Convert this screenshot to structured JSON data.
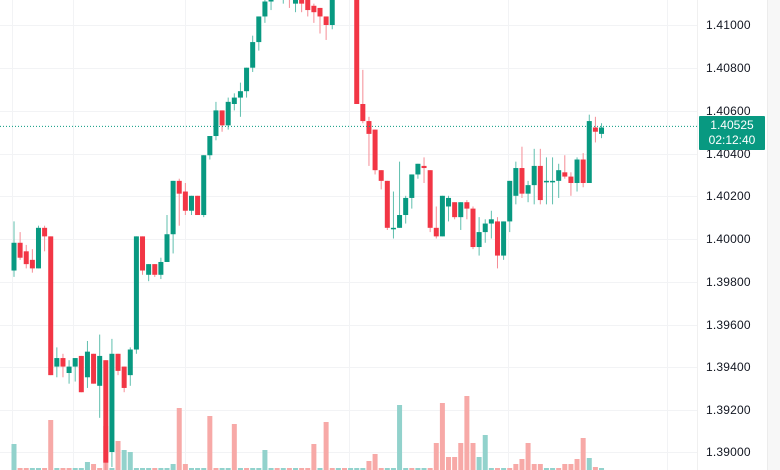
{
  "chart_data": {
    "type": "candlestick",
    "title": "",
    "xlabel": "",
    "ylabel": "",
    "ylim": [
      1.3896,
      1.4115
    ],
    "grid": true,
    "colors": {
      "up": "#089981",
      "down": "#f23645",
      "up_volume": "#92d2cc",
      "down_volume": "#f7a9a7",
      "grid": "#f0f3fa",
      "last_price_line": "#089981"
    },
    "price_axis_ticks": [
      "1.41000",
      "1.40800",
      "1.40600",
      "1.40400",
      "1.40200",
      "1.40000",
      "1.39800",
      "1.39600",
      "1.39400",
      "1.39200",
      "1.39000"
    ],
    "last_price": "1.40525",
    "countdown": "02:12:40",
    "candles": [
      {
        "o": 1.3985,
        "h": 1.4008,
        "l": 1.3982,
        "c": 1.3998
      },
      {
        "o": 1.3998,
        "h": 1.4003,
        "l": 1.399,
        "c": 1.3991
      },
      {
        "o": 1.3994,
        "h": 1.3997,
        "l": 1.3986,
        "c": 1.3988
      },
      {
        "o": 1.399,
        "h": 1.3995,
        "l": 1.3984,
        "c": 1.3986
      },
      {
        "o": 1.3986,
        "h": 1.4006,
        "l": 1.3986,
        "c": 1.4005
      },
      {
        "o": 1.4005,
        "h": 1.4006,
        "l": 1.3994,
        "c": 1.4001
      },
      {
        "o": 1.4001,
        "h": 1.4001,
        "l": 1.3937,
        "c": 1.3936
      },
      {
        "o": 1.394,
        "h": 1.3949,
        "l": 1.3935,
        "c": 1.3944
      },
      {
        "o": 1.3944,
        "h": 1.3946,
        "l": 1.3935,
        "c": 1.394
      },
      {
        "o": 1.3937,
        "h": 1.3943,
        "l": 1.3932,
        "c": 1.394
      },
      {
        "o": 1.394,
        "h": 1.3944,
        "l": 1.3933,
        "c": 1.3944
      },
      {
        "o": 1.3945,
        "h": 1.3945,
        "l": 1.3928,
        "c": 1.3928
      },
      {
        "o": 1.3935,
        "h": 1.3952,
        "l": 1.393,
        "c": 1.3947
      },
      {
        "o": 1.3946,
        "h": 1.3943,
        "l": 1.3933,
        "c": 1.3932
      },
      {
        "o": 1.3931,
        "h": 1.3955,
        "l": 1.3916,
        "c": 1.3945
      },
      {
        "o": 1.3943,
        "h": 1.3935,
        "l": 1.3891,
        "c": 1.3895
      },
      {
        "o": 1.39,
        "h": 1.3953,
        "l": 1.3893,
        "c": 1.3946
      },
      {
        "o": 1.3946,
        "h": 1.3946,
        "l": 1.3936,
        "c": 1.3938
      },
      {
        "o": 1.394,
        "h": 1.394,
        "l": 1.3928,
        "c": 1.393
      },
      {
        "o": 1.3936,
        "h": 1.3949,
        "l": 1.3931,
        "c": 1.3948
      },
      {
        "o": 1.3948,
        "h": 1.4001,
        "l": 1.3946,
        "c": 1.4001
      },
      {
        "o": 1.4001,
        "h": 1.4001,
        "l": 1.3983,
        "c": 1.3985
      },
      {
        "o": 1.3983,
        "h": 1.3988,
        "l": 1.398,
        "c": 1.3988
      },
      {
        "o": 1.3988,
        "h": 1.3985,
        "l": 1.3982,
        "c": 1.3983
      },
      {
        "o": 1.3983,
        "h": 1.3991,
        "l": 1.3981,
        "c": 1.3989
      },
      {
        "o": 1.3989,
        "h": 1.4011,
        "l": 1.3989,
        "c": 1.4002
      },
      {
        "o": 1.4002,
        "h": 1.4027,
        "l": 1.3993,
        "c": 1.4027
      },
      {
        "o": 1.4027,
        "h": 1.4028,
        "l": 1.4006,
        "c": 1.4021
      },
      {
        "o": 1.4022,
        "h": 1.4026,
        "l": 1.4011,
        "c": 1.4013
      },
      {
        "o": 1.4013,
        "h": 1.402,
        "l": 1.4011,
        "c": 1.402
      },
      {
        "o": 1.402,
        "h": 1.402,
        "l": 1.4011,
        "c": 1.4011
      },
      {
        "o": 1.4011,
        "h": 1.4039,
        "l": 1.401,
        "c": 1.4039
      },
      {
        "o": 1.4039,
        "h": 1.4047,
        "l": 1.4037,
        "c": 1.4048
      },
      {
        "o": 1.4048,
        "h": 1.4064,
        "l": 1.4046,
        "c": 1.406
      },
      {
        "o": 1.406,
        "h": 1.406,
        "l": 1.405,
        "c": 1.4053
      },
      {
        "o": 1.4053,
        "h": 1.4066,
        "l": 1.4051,
        "c": 1.4064
      },
      {
        "o": 1.4063,
        "h": 1.4068,
        "l": 1.406,
        "c": 1.4066
      },
      {
        "o": 1.4066,
        "h": 1.4073,
        "l": 1.4057,
        "c": 1.4069
      },
      {
        "o": 1.4069,
        "h": 1.408,
        "l": 1.4066,
        "c": 1.408
      },
      {
        "o": 1.408,
        "h": 1.4095,
        "l": 1.4078,
        "c": 1.4092
      },
      {
        "o": 1.4092,
        "h": 1.4104,
        "l": 1.4088,
        "c": 1.4104
      },
      {
        "o": 1.4104,
        "h": 1.4114,
        "l": 1.4101,
        "c": 1.4111
      },
      {
        "o": 1.4111,
        "h": 1.4124,
        "l": 1.4107,
        "c": 1.4121
      },
      {
        "o": 1.4121,
        "h": 1.4121,
        "l": 1.4112,
        "c": 1.4114
      },
      {
        "o": 1.4114,
        "h": 1.412,
        "l": 1.411,
        "c": 1.4117
      },
      {
        "o": 1.4117,
        "h": 1.412,
        "l": 1.4108,
        "c": 1.4112
      },
      {
        "o": 1.411,
        "h": 1.4117,
        "l": 1.4106,
        "c": 1.4113
      },
      {
        "o": 1.4116,
        "h": 1.4118,
        "l": 1.4106,
        "c": 1.411
      },
      {
        "o": 1.4113,
        "h": 1.4114,
        "l": 1.4104,
        "c": 1.4107
      },
      {
        "o": 1.4109,
        "h": 1.411,
        "l": 1.4101,
        "c": 1.4106
      },
      {
        "o": 1.4108,
        "h": 1.4106,
        "l": 1.4096,
        "c": 1.4104
      },
      {
        "o": 1.4104,
        "h": 1.4102,
        "l": 1.4093,
        "c": 1.41
      },
      {
        "o": 1.41,
        "h": 1.413,
        "l": 1.4098,
        "c": 1.4126
      },
      {
        "o": 1.4126,
        "h": 1.4136,
        "l": 1.4112,
        "c": 1.413
      },
      {
        "o": 1.413,
        "h": 1.4132,
        "l": 1.4126,
        "c": 1.4128
      },
      {
        "o": 1.4128,
        "h": 1.4128,
        "l": 1.4126,
        "c": 1.4127
      },
      {
        "o": 1.4126,
        "h": 1.4126,
        "l": 1.4063,
        "c": 1.4063
      },
      {
        "o": 1.4063,
        "h": 1.4079,
        "l": 1.4054,
        "c": 1.4055
      },
      {
        "o": 1.4055,
        "h": 1.4057,
        "l": 1.4034,
        "c": 1.4049
      },
      {
        "o": 1.4051,
        "h": 1.405,
        "l": 1.403,
        "c": 1.4032
      },
      {
        "o": 1.4032,
        "h": 1.4031,
        "l": 1.4023,
        "c": 1.4027
      },
      {
        "o": 1.4027,
        "h": 1.4027,
        "l": 1.4004,
        "c": 1.4005
      },
      {
        "o": 1.4005,
        "h": 1.4022,
        "l": 1.4,
        "c": 1.4005
      },
      {
        "o": 1.4005,
        "h": 1.4036,
        "l": 1.4006,
        "c": 1.4011
      },
      {
        "o": 1.4011,
        "h": 1.402,
        "l": 1.4007,
        "c": 1.4019
      },
      {
        "o": 1.4019,
        "h": 1.403,
        "l": 1.4014,
        "c": 1.403
      },
      {
        "o": 1.403,
        "h": 1.4035,
        "l": 1.4028,
        "c": 1.4035
      },
      {
        "o": 1.4034,
        "h": 1.4038,
        "l": 1.4026,
        "c": 1.4033
      },
      {
        "o": 1.4032,
        "h": 1.4032,
        "l": 1.4003,
        "c": 1.4005
      },
      {
        "o": 1.4005,
        "h": 1.4015,
        "l": 1.4,
        "c": 1.4001
      },
      {
        "o": 1.4001,
        "h": 1.402,
        "l": 1.4001,
        "c": 1.402
      },
      {
        "o": 1.4015,
        "h": 1.402,
        "l": 1.4008,
        "c": 1.4019
      },
      {
        "o": 1.4017,
        "h": 1.4017,
        "l": 1.4009,
        "c": 1.401
      },
      {
        "o": 1.401,
        "h": 1.4017,
        "l": 1.4004,
        "c": 1.4017
      },
      {
        "o": 1.4017,
        "h": 1.4018,
        "l": 1.4009,
        "c": 1.4014
      },
      {
        "o": 1.4014,
        "h": 1.4015,
        "l": 1.3995,
        "c": 1.3996
      },
      {
        "o": 1.3996,
        "h": 1.401,
        "l": 1.3992,
        "c": 1.4003
      },
      {
        "o": 1.4003,
        "h": 1.4009,
        "l": 1.3998,
        "c": 1.4007
      },
      {
        "o": 1.4007,
        "h": 1.4013,
        "l": 1.4,
        "c": 1.4009
      },
      {
        "o": 1.4008,
        "h": 1.401,
        "l": 1.3986,
        "c": 1.3992
      },
      {
        "o": 1.3992,
        "h": 1.4002,
        "l": 1.399,
        "c": 1.4008
      },
      {
        "o": 1.4008,
        "h": 1.4027,
        "l": 1.4003,
        "c": 1.4027
      },
      {
        "o": 1.402,
        "h": 1.4036,
        "l": 1.4016,
        "c": 1.4033
      },
      {
        "o": 1.4033,
        "h": 1.4043,
        "l": 1.4019,
        "c": 1.4021
      },
      {
        "o": 1.4021,
        "h": 1.4027,
        "l": 1.4017,
        "c": 1.4025
      },
      {
        "o": 1.4025,
        "h": 1.4042,
        "l": 1.4016,
        "c": 1.4034
      },
      {
        "o": 1.4034,
        "h": 1.4042,
        "l": 1.4016,
        "c": 1.4018
      },
      {
        "o": 1.4027,
        "h": 1.4038,
        "l": 1.4016,
        "c": 1.4027
      },
      {
        "o": 1.4027,
        "h": 1.4038,
        "l": 1.4016,
        "c": 1.4027
      },
      {
        "o": 1.4027,
        "h": 1.4035,
        "l": 1.4019,
        "c": 1.4032
      },
      {
        "o": 1.4031,
        "h": 1.4039,
        "l": 1.4028,
        "c": 1.4029
      },
      {
        "o": 1.4029,
        "h": 1.4031,
        "l": 1.402,
        "c": 1.4026
      },
      {
        "o": 1.4026,
        "h": 1.4038,
        "l": 1.4022,
        "c": 1.4037
      },
      {
        "o": 1.4037,
        "h": 1.404,
        "l": 1.4024,
        "c": 1.4026
      },
      {
        "o": 1.4026,
        "h": 1.4058,
        "l": 1.4026,
        "c": 1.4055
      },
      {
        "o": 1.4052,
        "h": 1.4057,
        "l": 1.4045,
        "c": 1.405
      },
      {
        "o": 1.4049,
        "h": 1.4054,
        "l": 1.4047,
        "c": 1.4052
      }
    ],
    "volumes": [
      {
        "v": 26,
        "up": true
      },
      {
        "v": 2,
        "up": false
      },
      {
        "v": 2,
        "up": false
      },
      {
        "v": 2,
        "up": true
      },
      {
        "v": 2,
        "up": true
      },
      {
        "v": 2,
        "up": false
      },
      {
        "v": 50,
        "up": false
      },
      {
        "v": 2,
        "up": true
      },
      {
        "v": 2,
        "up": false
      },
      {
        "v": 2,
        "up": false
      },
      {
        "v": 2,
        "up": true
      },
      {
        "v": 2,
        "up": true
      },
      {
        "v": 8,
        "up": true
      },
      {
        "v": 6,
        "up": false
      },
      {
        "v": 2,
        "up": false
      },
      {
        "v": 44,
        "up": false
      },
      {
        "v": 2,
        "up": true
      },
      {
        "v": 29,
        "up": false
      },
      {
        "v": 20,
        "up": true
      },
      {
        "v": 18,
        "up": true
      },
      {
        "v": 2,
        "up": true
      },
      {
        "v": 2,
        "up": true
      },
      {
        "v": 2,
        "up": true
      },
      {
        "v": 2,
        "up": false
      },
      {
        "v": 2,
        "up": true
      },
      {
        "v": 2,
        "up": true
      },
      {
        "v": 6,
        "up": true
      },
      {
        "v": 62,
        "up": false
      },
      {
        "v": 6,
        "up": false
      },
      {
        "v": 2,
        "up": true
      },
      {
        "v": 2,
        "up": true
      },
      {
        "v": 2,
        "up": true
      },
      {
        "v": 54,
        "up": false
      },
      {
        "v": 2,
        "up": false
      },
      {
        "v": 2,
        "up": true
      },
      {
        "v": 2,
        "up": true
      },
      {
        "v": 46,
        "up": false
      },
      {
        "v": 2,
        "up": true
      },
      {
        "v": 2,
        "up": false
      },
      {
        "v": 2,
        "up": true
      },
      {
        "v": 2,
        "up": true
      },
      {
        "v": 20,
        "up": true
      },
      {
        "v": 2,
        "up": true
      },
      {
        "v": 2,
        "up": false
      },
      {
        "v": 2,
        "up": true
      },
      {
        "v": 2,
        "up": false
      },
      {
        "v": 2,
        "up": true
      },
      {
        "v": 2,
        "up": false
      },
      {
        "v": 2,
        "up": false
      },
      {
        "v": 26,
        "up": false
      },
      {
        "v": 2,
        "up": true
      },
      {
        "v": 48,
        "up": false
      },
      {
        "v": 2,
        "up": false
      },
      {
        "v": 2,
        "up": true
      },
      {
        "v": 2,
        "up": false
      },
      {
        "v": 2,
        "up": true
      },
      {
        "v": 2,
        "up": true
      },
      {
        "v": 2,
        "up": true
      },
      {
        "v": 9,
        "up": false
      },
      {
        "v": 16,
        "up": false
      },
      {
        "v": 2,
        "up": false
      },
      {
        "v": 2,
        "up": true
      },
      {
        "v": 2,
        "up": true
      },
      {
        "v": 65,
        "up": true
      },
      {
        "v": 2,
        "up": true
      },
      {
        "v": 2,
        "up": false
      },
      {
        "v": 2,
        "up": true
      },
      {
        "v": 2,
        "up": true
      },
      {
        "v": 2,
        "up": false
      },
      {
        "v": 27,
        "up": false
      },
      {
        "v": 67,
        "up": false
      },
      {
        "v": 13,
        "up": false
      },
      {
        "v": 13,
        "up": false
      },
      {
        "v": 27,
        "up": false
      },
      {
        "v": 74,
        "up": false
      },
      {
        "v": 27,
        "up": false
      },
      {
        "v": 13,
        "up": true
      },
      {
        "v": 35,
        "up": true
      },
      {
        "v": 2,
        "up": true
      },
      {
        "v": 2,
        "up": false
      },
      {
        "v": 2,
        "up": true
      },
      {
        "v": 2,
        "up": false
      },
      {
        "v": 6,
        "up": false
      },
      {
        "v": 11,
        "up": false
      },
      {
        "v": 27,
        "up": false
      },
      {
        "v": 6,
        "up": false
      },
      {
        "v": 6,
        "up": false
      },
      {
        "v": 2,
        "up": true
      },
      {
        "v": 2,
        "up": true
      },
      {
        "v": 2,
        "up": false
      },
      {
        "v": 6,
        "up": false
      },
      {
        "v": 6,
        "up": false
      },
      {
        "v": 11,
        "up": false
      },
      {
        "v": 32,
        "up": false
      },
      {
        "v": 12,
        "up": true
      },
      {
        "v": 3,
        "up": false
      },
      {
        "v": 2,
        "up": true
      }
    ]
  },
  "price_axis": {
    "labels": [
      {
        "text": "1.41000",
        "y": 25
      },
      {
        "text": "1.40800",
        "y": 68
      },
      {
        "text": "1.40600",
        "y": 111
      },
      {
        "text": "1.40400",
        "y": 154
      },
      {
        "text": "1.40200",
        "y": 196
      },
      {
        "text": "1.40000",
        "y": 239
      },
      {
        "text": "1.39800",
        "y": 282
      },
      {
        "text": "1.39600",
        "y": 325
      },
      {
        "text": "1.39400",
        "y": 367
      },
      {
        "text": "1.39200",
        "y": 410
      },
      {
        "text": "1.39000",
        "y": 452
      }
    ]
  },
  "last_price_tag": {
    "price": "1.40525",
    "countdown": "02:12:40",
    "color": "#089981"
  }
}
